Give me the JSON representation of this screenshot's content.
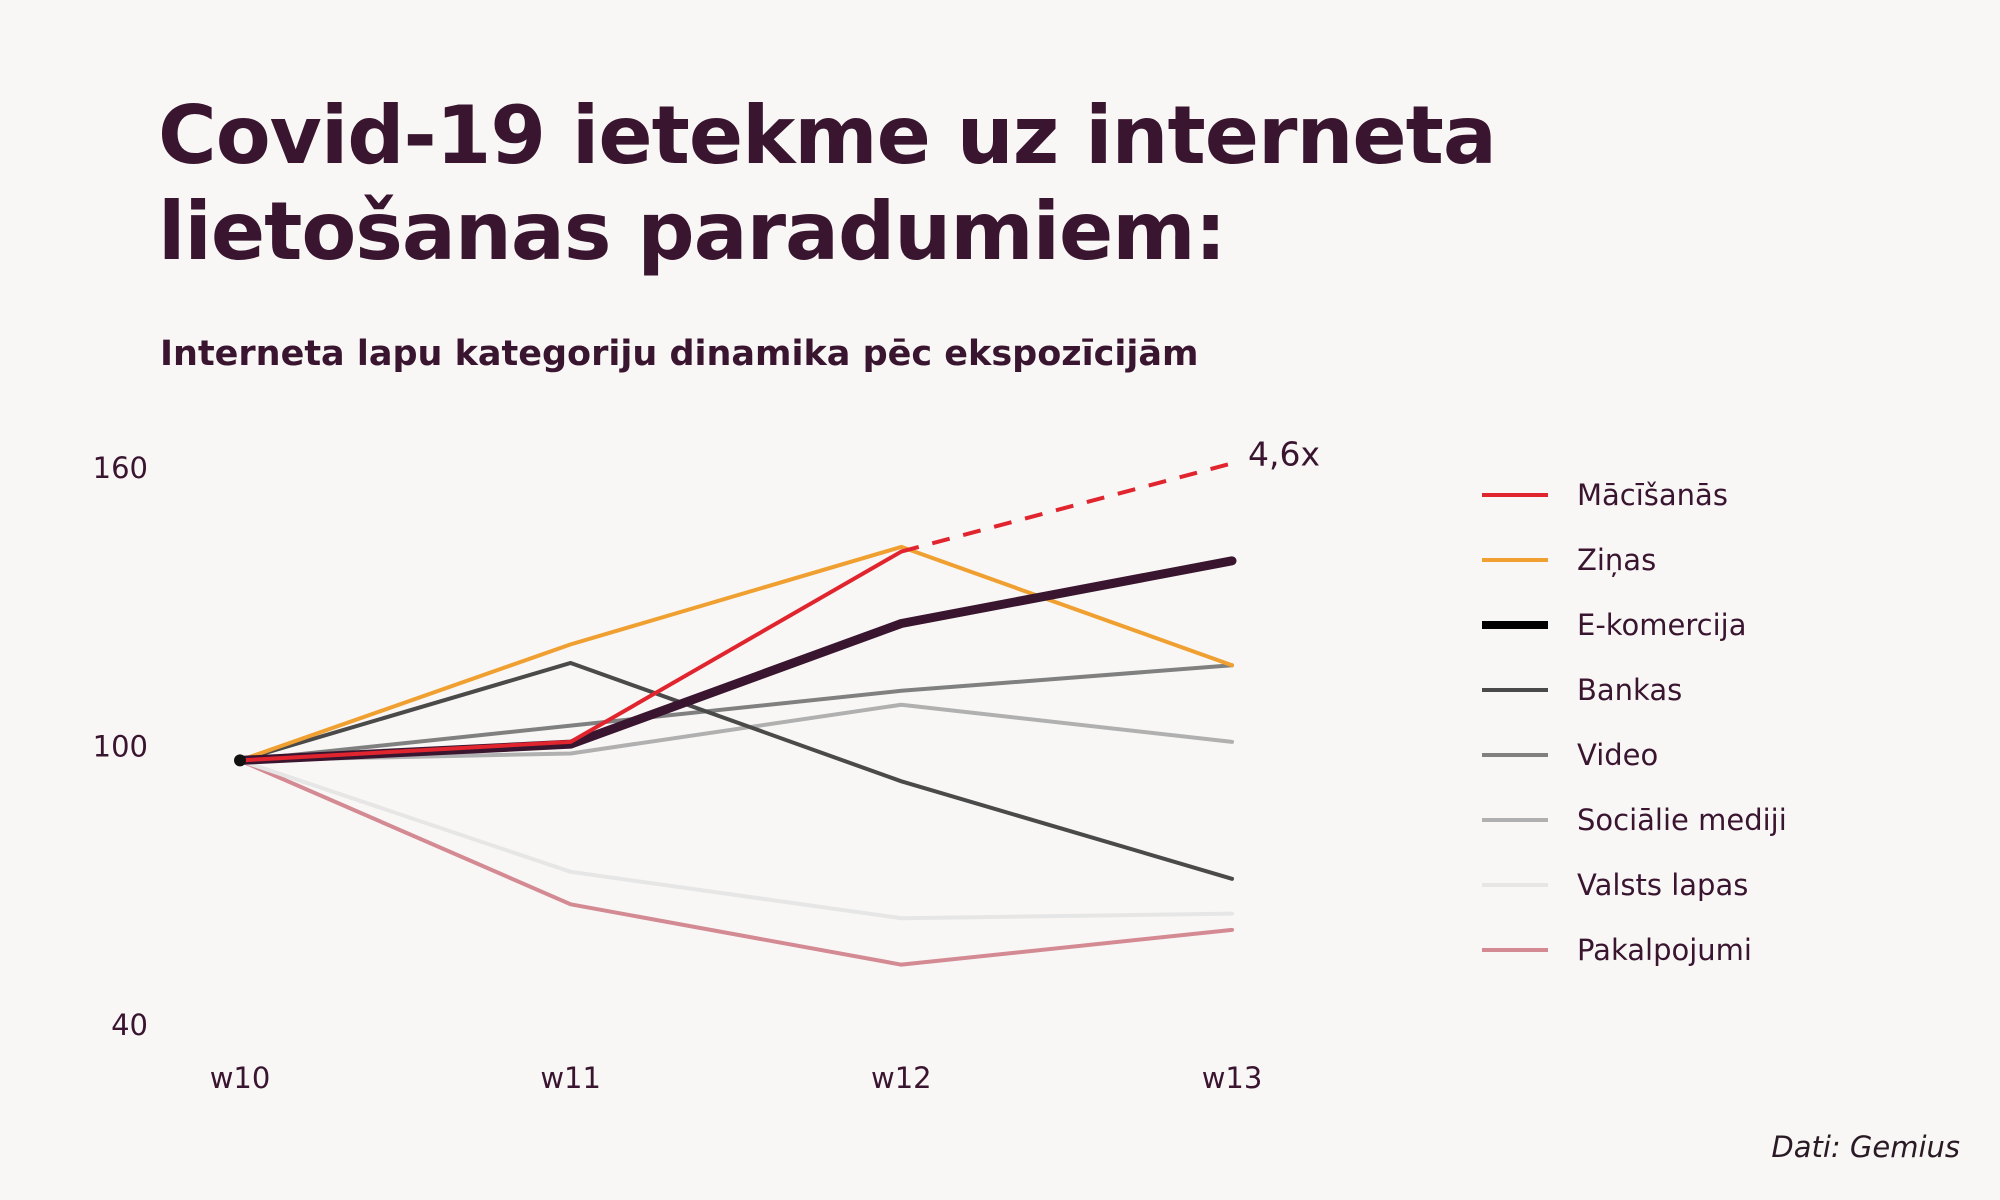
{
  "title_lines": [
    "Covid-19 ietekme uz interneta",
    "lietošanas paradumiem:"
  ],
  "subtitle": "Interneta lapu kategoriju dinamika pēc ekspozīcijām",
  "source": "Dati: Gemius",
  "chart_data": {
    "type": "line",
    "categories": [
      "w10",
      "w11",
      "w12",
      "w13"
    ],
    "ylim": [
      40,
      160
    ],
    "yticks": [
      160,
      100,
      40
    ],
    "grid": false,
    "legend_position": "right",
    "series": [
      {
        "name": "Pakalpojumi",
        "values": [
          97,
          66,
          53,
          60.5
        ],
        "color": "#d48a93",
        "width": 4
      },
      {
        "name": "Valsts lapas",
        "values": [
          97,
          73,
          63,
          64
        ],
        "color": "#e6e6e6",
        "width": 4
      },
      {
        "name": "Sociālie mediji",
        "values": [
          97,
          98.5,
          109,
          101
        ],
        "color": "#b0b0b0",
        "width": 4
      },
      {
        "name": "Video",
        "values": [
          97,
          104.5,
          112,
          117.5
        ],
        "color": "#808080",
        "width": 4
      },
      {
        "name": "Bankas",
        "values": [
          97,
          118,
          92.5,
          71.5
        ],
        "color": "#4a4a4a",
        "width": 4
      },
      {
        "name": "Ziņas",
        "values": [
          97,
          122,
          143,
          117.5
        ],
        "color": "#f0a030",
        "width": 4
      },
      {
        "name": "E-komercija",
        "values": [
          97,
          100.5,
          126.5,
          140
        ],
        "color": "#3a1530",
        "width": 9
      },
      {
        "name": "Mācīšanās",
        "values": [
          97,
          101,
          142,
          161
        ],
        "color": "#e0252f",
        "width": 4,
        "dashed_from_index": 2
      }
    ],
    "legend_order": [
      "Mācīšanās",
      "Ziņas",
      "E-komercija",
      "Bankas",
      "Video",
      "Sociālie mediji",
      "Valsts lapas",
      "Pakalpojumi"
    ],
    "annotation": {
      "text": "4,6x",
      "series": "Mācīšanās",
      "category": "w13"
    }
  }
}
